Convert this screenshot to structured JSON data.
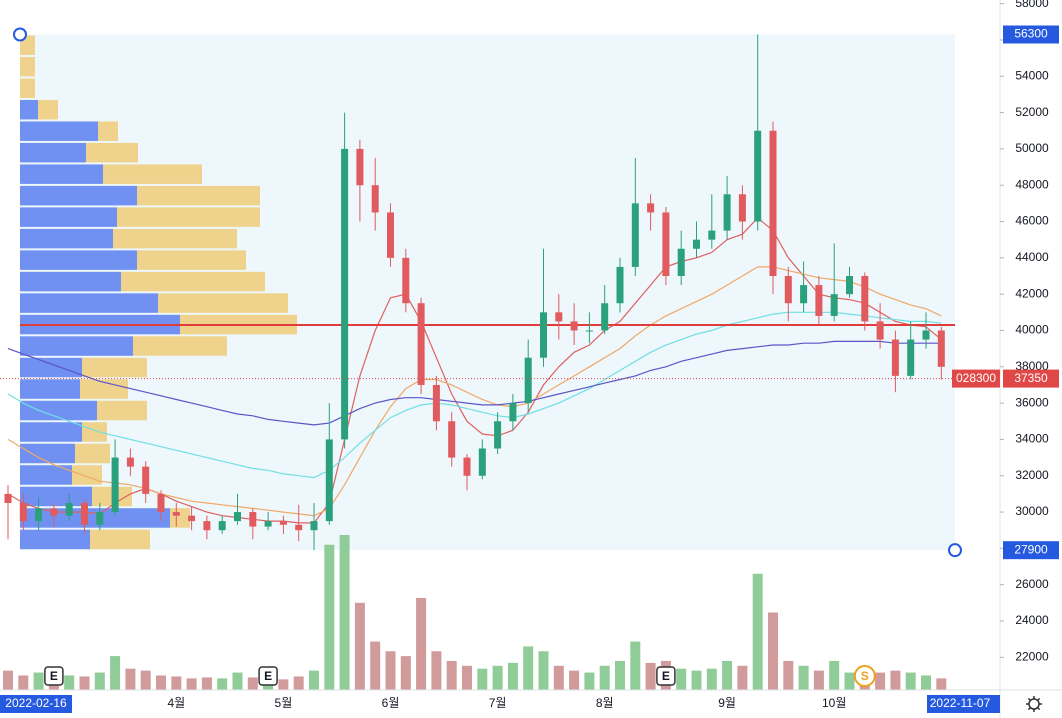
{
  "chart_data": {
    "type": "candlestick",
    "categories": [
      null,
      null,
      null,
      null,
      null,
      null,
      null,
      null,
      null,
      null,
      null,
      "4월",
      null,
      null,
      null,
      null,
      null,
      null,
      "5월",
      null,
      null,
      null,
      null,
      null,
      null,
      "6월",
      null,
      null,
      null,
      null,
      null,
      null,
      "7월",
      null,
      null,
      null,
      null,
      null,
      null,
      "8월",
      null,
      null,
      null,
      null,
      null,
      null,
      null,
      "9월",
      null,
      null,
      null,
      null,
      null,
      null,
      "10월",
      null,
      null,
      null,
      null,
      null,
      null,
      null
    ],
    "open": [
      31000,
      30500,
      29500,
      30200,
      29800,
      30500,
      29300,
      30000,
      33000,
      32500,
      31000,
      30000,
      29800,
      29500,
      29000,
      29500,
      30000,
      29200,
      29500,
      29300,
      29000,
      29500,
      34000,
      50000,
      48000,
      46500,
      44000,
      41500,
      37000,
      35000,
      33000,
      32000,
      33500,
      35000,
      36000,
      38500,
      41000,
      40500,
      40000,
      40000,
      41500,
      43500,
      47000,
      46500,
      43000,
      44500,
      45000,
      45500,
      47500,
      46000,
      51000,
      43000,
      41500,
      42500,
      40800,
      42000,
      43000,
      40500,
      39500,
      37500,
      39500,
      40000
    ],
    "high": [
      31500,
      31000,
      30800,
      30500,
      31000,
      30700,
      30500,
      34000,
      33500,
      32800,
      31200,
      30500,
      30300,
      29800,
      29800,
      31000,
      30200,
      30000,
      29800,
      30400,
      30500,
      36000,
      52000,
      50500,
      49500,
      47000,
      44500,
      41800,
      37500,
      35500,
      33200,
      34000,
      35500,
      36500,
      39500,
      44500,
      42000,
      41500,
      41000,
      42500,
      44000,
      49500,
      47500,
      46800,
      45500,
      46000,
      47500,
      48500,
      48000,
      56300,
      51500,
      43500,
      43800,
      43000,
      44800,
      43500,
      43200,
      41500,
      40000,
      40500,
      41000,
      40200
    ],
    "low": [
      28500,
      29000,
      29000,
      29200,
      29500,
      28800,
      29000,
      29800,
      32000,
      30500,
      29500,
      29200,
      29000,
      28500,
      28800,
      29300,
      28500,
      29000,
      28800,
      28400,
      27900,
      29300,
      33500,
      46000,
      45500,
      43500,
      41000,
      36500,
      34500,
      32500,
      31200,
      31800,
      33200,
      34500,
      35500,
      38000,
      39500,
      39200,
      39300,
      39800,
      41000,
      43000,
      45500,
      42500,
      42500,
      44000,
      44500,
      45000,
      45000,
      45500,
      42000,
      40500,
      41000,
      40300,
      40500,
      41800,
      40000,
      39000,
      36600,
      37300,
      39000,
      37300
    ],
    "close": [
      30500,
      29500,
      30200,
      29800,
      30500,
      29300,
      30000,
      33000,
      32500,
      31000,
      30000,
      29800,
      29500,
      29000,
      29500,
      30000,
      29200,
      29500,
      29300,
      29000,
      29500,
      34000,
      50000,
      48000,
      46500,
      44000,
      41500,
      37000,
      35000,
      33000,
      32000,
      33500,
      35000,
      36000,
      38500,
      41000,
      40500,
      40000,
      40000,
      41500,
      43500,
      47000,
      46500,
      43000,
      44500,
      45000,
      45500,
      47500,
      46000,
      51000,
      43000,
      41500,
      42500,
      40800,
      42000,
      43000,
      40500,
      39500,
      37500,
      39500,
      40000,
      38000
    ],
    "volume": [
      20,
      15,
      18,
      12,
      15,
      14,
      18,
      35,
      22,
      20,
      15,
      14,
      12,
      13,
      12,
      18,
      13,
      12,
      11,
      14,
      20,
      150,
      160,
      90,
      50,
      40,
      35,
      95,
      40,
      30,
      25,
      22,
      25,
      28,
      45,
      40,
      25,
      20,
      18,
      25,
      30,
      50,
      28,
      30,
      22,
      20,
      22,
      30,
      25,
      120,
      80,
      30,
      25,
      20,
      30,
      18,
      22,
      18,
      20,
      18,
      15,
      12
    ],
    "up_color": "#2aa07c",
    "down_color": "#e05a5e",
    "volume_up_color": "#8fcc98",
    "volume_down_color": "#d29b9b",
    "ylim": [
      20200,
      58200
    ],
    "yticks": [
      22000,
      24000,
      26000,
      28000,
      30000,
      32000,
      34000,
      36000,
      38000,
      40000,
      42000,
      44000,
      46000,
      48000,
      50000,
      52000,
      54000,
      56000,
      58000
    ],
    "grid": false,
    "moving_averages": [
      {
        "color": "#e0605f",
        "values": [
          31000,
          30500,
          30200,
          30000,
          30000,
          30000,
          29900,
          30500,
          31000,
          31300,
          31000,
          30600,
          30300,
          30000,
          29800,
          29700,
          29600,
          29500,
          29500,
          29400,
          29400,
          30500,
          34000,
          37500,
          40000,
          41800,
          42000,
          40500,
          38500,
          36500,
          35000,
          34300,
          34200,
          34500,
          35500,
          37000,
          38000,
          38800,
          39200,
          40000,
          40500,
          41500,
          42500,
          43500,
          43800,
          44000,
          44300,
          45000,
          45300,
          46200,
          45500,
          44000,
          43000,
          42000,
          41800,
          41700,
          41500,
          41000,
          40500,
          40300,
          40200,
          39500
        ]
      },
      {
        "color": "#f0a868",
        "values": [
          34000,
          33500,
          33000,
          32600,
          32300,
          32000,
          31700,
          31600,
          31500,
          31300,
          31000,
          30800,
          30600,
          30500,
          30400,
          30300,
          30200,
          30100,
          30000,
          29900,
          29800,
          30200,
          31500,
          33000,
          34500,
          35800,
          36800,
          37300,
          37300,
          37000,
          36600,
          36200,
          35900,
          35800,
          36000,
          36500,
          37000,
          37500,
          38000,
          38500,
          39000,
          39700,
          40300,
          40800,
          41200,
          41600,
          42000,
          42500,
          43000,
          43500,
          43500,
          43300,
          43100,
          42900,
          42800,
          42700,
          42400,
          42000,
          41700,
          41400,
          41200,
          40800
        ]
      },
      {
        "color": "#6fe0e4",
        "values": [
          36500,
          36000,
          35600,
          35300,
          35000,
          34700,
          34400,
          34200,
          34000,
          33800,
          33600,
          33400,
          33200,
          33000,
          32800,
          32600,
          32400,
          32300,
          32100,
          32000,
          31900,
          32300,
          33000,
          33800,
          34500,
          35200,
          35600,
          35900,
          36000,
          35900,
          35700,
          35500,
          35300,
          35200,
          35400,
          35700,
          36000,
          36400,
          36800,
          37300,
          37800,
          38300,
          38800,
          39200,
          39500,
          39800,
          40000,
          40300,
          40500,
          40700,
          40900,
          41000,
          41000,
          41000,
          41000,
          40900,
          40800,
          40700,
          40600,
          40500,
          40500,
          40400
        ]
      },
      {
        "color": "#5a55c8",
        "values": [
          39000,
          38700,
          38400,
          38100,
          37800,
          37500,
          37200,
          37000,
          36800,
          36600,
          36400,
          36200,
          36000,
          35800,
          35600,
          35400,
          35300,
          35100,
          35000,
          34900,
          34800,
          34900,
          35300,
          35700,
          36000,
          36200,
          36300,
          36300,
          36200,
          36100,
          36000,
          35900,
          35900,
          36000,
          36100,
          36300,
          36500,
          36700,
          36900,
          37100,
          37300,
          37500,
          37800,
          38000,
          38300,
          38500,
          38700,
          38900,
          39000,
          39100,
          39200,
          39200,
          39300,
          39300,
          39400,
          39400,
          39400,
          39400,
          39300,
          39300,
          39300,
          39300
        ]
      }
    ],
    "volume_profile": {
      "range": [
        56300,
        27900
      ],
      "range_color": "#2459e0",
      "up_color": "#5b7ff0",
      "down_color": "#efcd78",
      "up": [
        0,
        0,
        0,
        18,
        78,
        66,
        83,
        117,
        97,
        93,
        117,
        101,
        138,
        160,
        113,
        62,
        60,
        77,
        62,
        55,
        52,
        72,
        150,
        70
      ],
      "down": [
        15,
        15,
        15,
        20,
        20,
        52,
        99,
        123,
        143,
        124,
        109,
        144,
        130,
        117,
        94,
        65,
        48,
        50,
        25,
        35,
        30,
        40,
        20,
        60
      ]
    },
    "poc_line": {
      "value": 40300,
      "color": "#e03c3c"
    },
    "last_price": {
      "value": 37350,
      "countdown": "028300",
      "color": "#e04848"
    },
    "x_start_label": "2022-02-16",
    "x_end_prefix": "월",
    "x_end_label": "2022-11-07",
    "events": [
      {
        "label": "E",
        "index": 3
      },
      {
        "label": "E",
        "index": 17
      },
      {
        "label": "E",
        "index": 43
      },
      {
        "label": "S",
        "index": 56
      }
    ]
  }
}
